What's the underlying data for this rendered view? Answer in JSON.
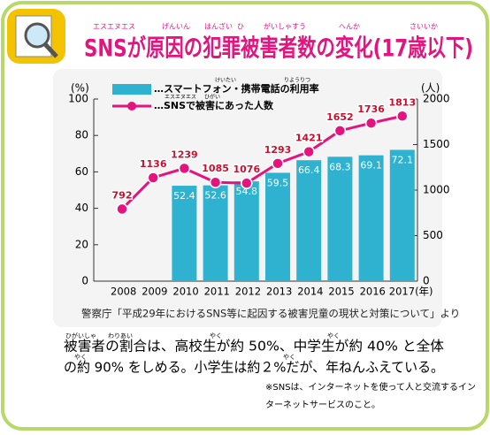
{
  "header": {
    "title": "SNSが原因の犯罪被害者数の変化(17歳以下)",
    "title_ruby": [
      "エスエヌエス",
      "げんいん",
      "はんざい",
      "ひ",
      "がいしゃすう",
      "へんか",
      "さいいか"
    ]
  },
  "chart_data": {
    "type": "bar_line",
    "ylabel": "(%)",
    "y2label": "(人)",
    "categories": [
      "2008",
      "2009",
      "2010",
      "2011",
      "2012",
      "2013",
      "2014",
      "2015",
      "2016",
      "2017(年)"
    ],
    "series": [
      {
        "name": "…スマートフォン・携帯電話の利用率",
        "type": "bar",
        "color": "#2fb2cf",
        "values": [
          null,
          null,
          52.4,
          52.6,
          54.8,
          59.5,
          66.4,
          68.3,
          69.1,
          72.1
        ]
      },
      {
        "name": "…SNSで被害にあった人数",
        "type": "line",
        "axis": "y2",
        "color": "#e4147f",
        "values": [
          792,
          1136,
          1239,
          1085,
          1076,
          1293,
          1421,
          1652,
          1736,
          1813
        ]
      }
    ],
    "legend_ruby": [
      "けいたい",
      "りようりつ",
      "エスエヌエス",
      "ひがい"
    ],
    "ylim": [
      0,
      100
    ],
    "yticks": [
      0,
      20,
      40,
      60,
      80,
      100
    ],
    "y2lim": [
      0,
      2000
    ],
    "y2ticks": [
      0,
      500,
      1000,
      1500,
      2000
    ],
    "grid": false,
    "source": "警察庁「平成29年におけるSNS等に起因する被害児童の現状と対策について」より"
  },
  "body": {
    "lines": [
      "被害者の割合は、高校生が約 50%、中学生が約 40% と全体",
      "の約 90% をしめる。小学生は約２%だが、年ねんふえている。"
    ],
    "ruby": [
      "ひがいしゃ",
      "わりあい",
      "やく",
      "やく",
      "やく",
      "やく"
    ]
  },
  "note": {
    "lines": [
      "※SNSは、インターネットを使って人と交流するイン",
      "ターネットサービスのこと。"
    ]
  }
}
